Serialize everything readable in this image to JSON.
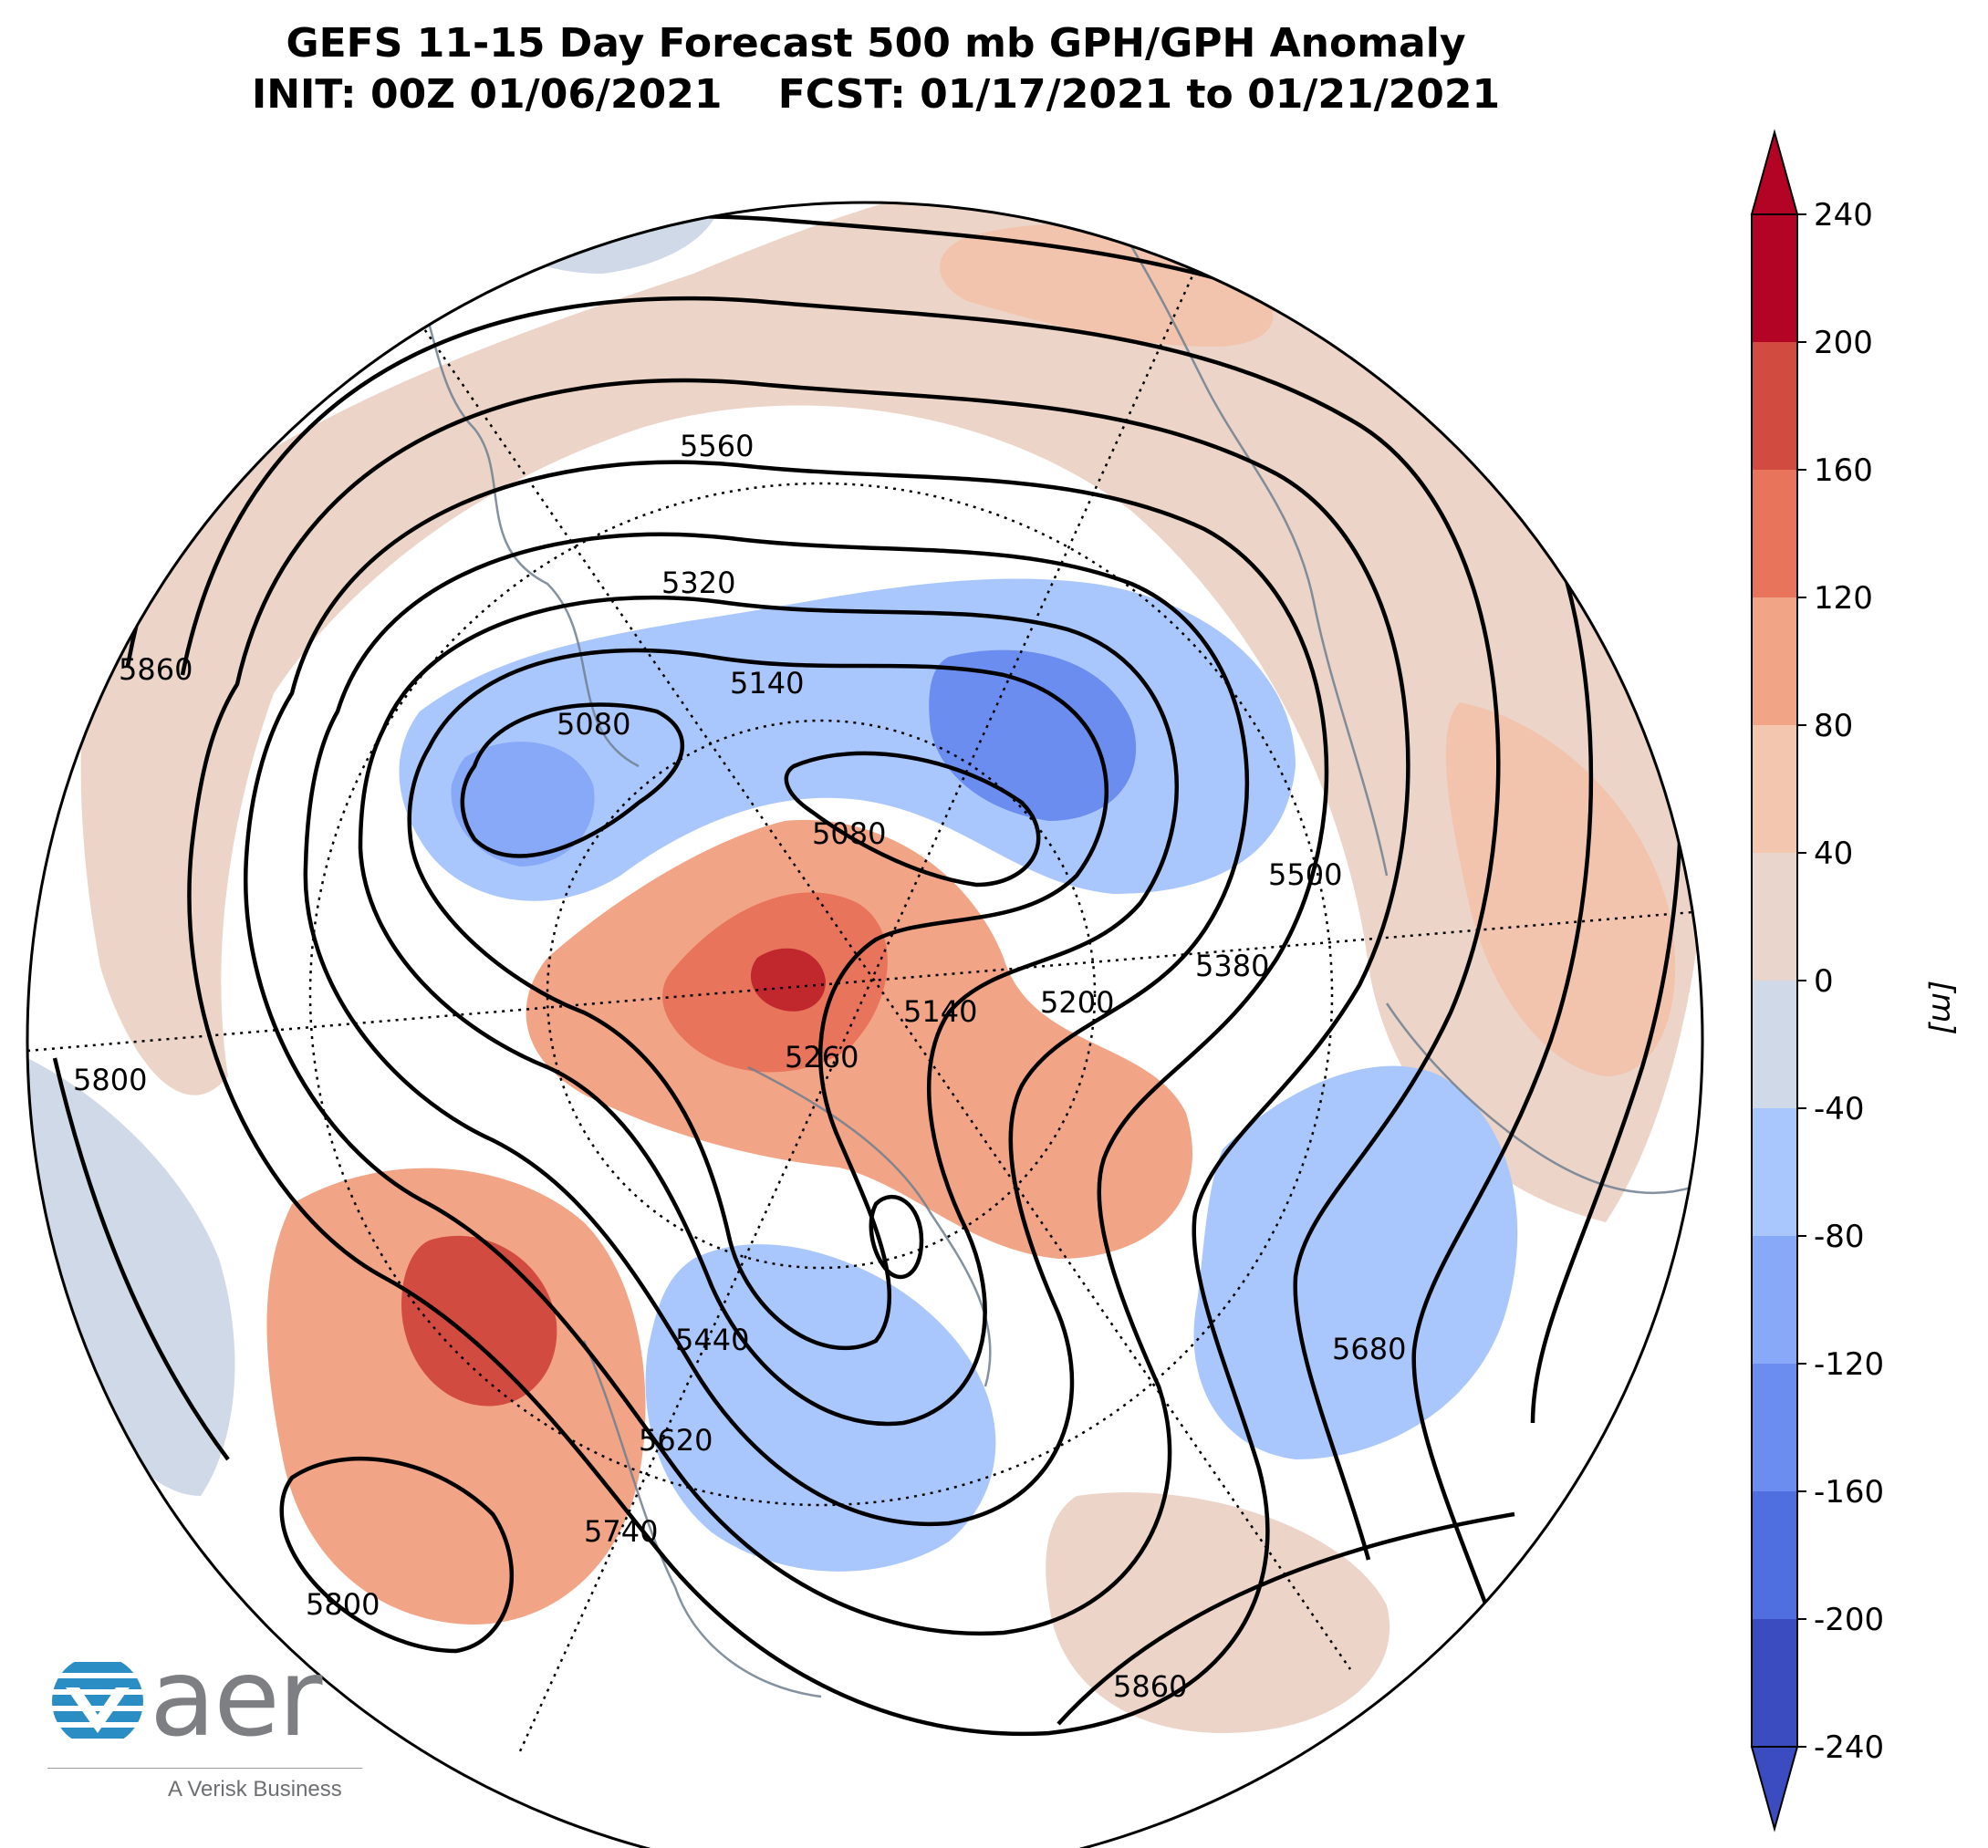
{
  "title": {
    "line1": "GEFS 11-15 Day Forecast 500 mb GPH/GPH Anomaly",
    "line2": "INIT: 00Z 01/06/2021    FCST: 01/17/2021 to 01/21/2021"
  },
  "contour_labels": [
    "5080",
    "5080",
    "5140",
    "5140",
    "5200",
    "5260",
    "5320",
    "5380",
    "5440",
    "5500",
    "5560",
    "5620",
    "5680",
    "5740",
    "5800",
    "5800",
    "5860",
    "5860",
    "5860"
  ],
  "colorbar": {
    "ticks": [
      "240",
      "200",
      "160",
      "120",
      "80",
      "40",
      "0",
      "-40",
      "-80",
      "-120",
      "-160",
      "-200",
      "-240"
    ],
    "unit_label": "[m]",
    "colors": {
      "240": "#b40426",
      "200": "#d24b40",
      "160": "#e7745b",
      "120": "#f2a486",
      "80": "#f3c6b0",
      "40": "#e9d5cb",
      "0": "#ffffff",
      "-40": "#d0d9e8",
      "-80": "#aac7fd",
      "-120": "#87a9f7",
      "-160": "#6b8df0",
      "-200": "#4f6fe0",
      "-240": "#3b4cc0"
    }
  },
  "logo": {
    "wordmark": "aer",
    "tagline": "A Verisk Business",
    "brand_color": "#2a8ec4"
  }
}
